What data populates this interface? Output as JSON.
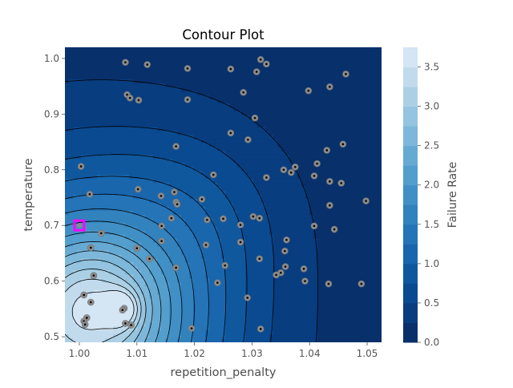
{
  "chart_data": {
    "type": "contour",
    "title": "Contour Plot",
    "xlabel": "repetition_penalty",
    "ylabel": "temperature",
    "xlim": [
      0.9975,
      1.0525
    ],
    "ylim": [
      0.49,
      1.02
    ],
    "x_ticks": [
      {
        "value": 1.0,
        "label": "1.00"
      },
      {
        "value": 1.01,
        "label": "1.01"
      },
      {
        "value": 1.02,
        "label": "1.02"
      },
      {
        "value": 1.03,
        "label": "1.03"
      },
      {
        "value": 1.04,
        "label": "1.04"
      },
      {
        "value": 1.05,
        "label": "1.05"
      }
    ],
    "y_ticks": [
      {
        "value": 0.5,
        "label": "0.5"
      },
      {
        "value": 0.6,
        "label": "0.6"
      },
      {
        "value": 0.7,
        "label": "0.7"
      },
      {
        "value": 0.8,
        "label": "0.8"
      },
      {
        "value": 0.9,
        "label": "0.9"
      },
      {
        "value": 1.0,
        "label": "1.0"
      }
    ],
    "colorbar": {
      "label": "Failure Rate",
      "range": [
        0.0,
        3.75
      ],
      "levels": [
        0,
        0.25,
        0.5,
        0.75,
        1.0,
        1.25,
        1.5,
        1.75,
        2.0,
        2.25,
        2.5,
        2.75,
        3.0,
        3.25,
        3.5,
        3.75
      ],
      "ticks": [
        {
          "value": 0.0,
          "label": "0.0"
        },
        {
          "value": 0.5,
          "label": "0.5"
        },
        {
          "value": 1.0,
          "label": "1.0"
        },
        {
          "value": 1.5,
          "label": "1.5"
        },
        {
          "value": 2.0,
          "label": "2.0"
        },
        {
          "value": 2.5,
          "label": "2.5"
        },
        {
          "value": 3.0,
          "label": "3.0"
        },
        {
          "value": 3.5,
          "label": "3.5"
        }
      ]
    },
    "colors": {
      "band_colors": [
        "#08306b",
        "#083d7f",
        "#0a4a90",
        "#10589e",
        "#1966ad",
        "#2474b7",
        "#3282be",
        "#4190c5",
        "#539ecd",
        "#66aad4",
        "#7db8da",
        "#94c4df",
        "#abd0e6",
        "#c1dbed",
        "#d4e5f4",
        "#e4eff9"
      ],
      "marker_face": "#8c8c8c",
      "marker_center": "#000000",
      "best_trial": "#ff00ff",
      "contour_line": "#000000"
    },
    "best_point": {
      "x": 1.0,
      "y": 0.7
    },
    "points": [
      {
        "x": 1.008,
        "y": 0.993
      },
      {
        "x": 1.0118,
        "y": 0.989
      },
      {
        "x": 1.0188,
        "y": 0.982
      },
      {
        "x": 1.0263,
        "y": 0.981
      },
      {
        "x": 1.0308,
        "y": 0.976
      },
      {
        "x": 1.0315,
        "y": 0.998
      },
      {
        "x": 1.0325,
        "y": 0.99
      },
      {
        "x": 1.0463,
        "y": 0.972
      },
      {
        "x": 1.0435,
        "y": 0.949
      },
      {
        "x": 1.0398,
        "y": 0.942
      },
      {
        "x": 1.0285,
        "y": 0.939
      },
      {
        "x": 1.0083,
        "y": 0.935
      },
      {
        "x": 1.0088,
        "y": 0.929
      },
      {
        "x": 1.0103,
        "y": 0.925
      },
      {
        "x": 1.0188,
        "y": 0.926
      },
      {
        "x": 1.0305,
        "y": 0.893
      },
      {
        "x": 1.0263,
        "y": 0.866
      },
      {
        "x": 1.0293,
        "y": 0.854
      },
      {
        "x": 1.0458,
        "y": 0.846
      },
      {
        "x": 1.0168,
        "y": 0.842
      },
      {
        "x": 1.043,
        "y": 0.835
      },
      {
        "x": 1.0413,
        "y": 0.811
      },
      {
        "x": 1.0375,
        "y": 0.805
      },
      {
        "x": 1.0355,
        "y": 0.8
      },
      {
        "x": 1.0368,
        "y": 0.795
      },
      {
        "x": 1.0408,
        "y": 0.789
      },
      {
        "x": 1.0325,
        "y": 0.786
      },
      {
        "x": 1.0435,
        "y": 0.779
      },
      {
        "x": 1.0455,
        "y": 0.776
      },
      {
        "x": 1.0003,
        "y": 0.806
      },
      {
        "x": 1.0233,
        "y": 0.791
      },
      {
        "x": 1.0102,
        "y": 0.765
      },
      {
        "x": 1.0018,
        "y": 0.756
      },
      {
        "x": 1.0142,
        "y": 0.753
      },
      {
        "x": 1.0165,
        "y": 0.76
      },
      {
        "x": 1.0213,
        "y": 0.747
      },
      {
        "x": 1.0168,
        "y": 0.742
      },
      {
        "x": 1.017,
        "y": 0.738
      },
      {
        "x": 1.0498,
        "y": 0.744
      },
      {
        "x": 1.0435,
        "y": 0.736
      },
      {
        "x": 1.016,
        "y": 0.713
      },
      {
        "x": 1.0222,
        "y": 0.71
      },
      {
        "x": 1.025,
        "y": 0.712
      },
      {
        "x": 1.0302,
        "y": 0.716
      },
      {
        "x": 1.0313,
        "y": 0.713
      },
      {
        "x": 1.028,
        "y": 0.701
      },
      {
        "x": 1.0143,
        "y": 0.699
      },
      {
        "x": 1.0408,
        "y": 0.699
      },
      {
        "x": 1.0443,
        "y": 0.693
      },
      {
        "x": 1.0038,
        "y": 0.686
      },
      {
        "x": 1.0143,
        "y": 0.672
      },
      {
        "x": 1.022,
        "y": 0.665
      },
      {
        "x": 1.028,
        "y": 0.67
      },
      {
        "x": 1.036,
        "y": 0.674
      },
      {
        "x": 1.002,
        "y": 0.66
      },
      {
        "x": 1.01,
        "y": 0.659
      },
      {
        "x": 1.0357,
        "y": 0.654
      },
      {
        "x": 1.0122,
        "y": 0.64
      },
      {
        "x": 1.0313,
        "y": 0.64
      },
      {
        "x": 1.0253,
        "y": 0.628
      },
      {
        "x": 1.0168,
        "y": 0.624
      },
      {
        "x": 1.0358,
        "y": 0.626
      },
      {
        "x": 1.039,
        "y": 0.622
      },
      {
        "x": 1.035,
        "y": 0.615
      },
      {
        "x": 1.0342,
        "y": 0.611
      },
      {
        "x": 1.0025,
        "y": 0.61
      },
      {
        "x": 1.0392,
        "y": 0.6
      },
      {
        "x": 1.0433,
        "y": 0.595
      },
      {
        "x": 1.049,
        "y": 0.595
      },
      {
        "x": 1.024,
        "y": 0.597
      },
      {
        "x": 1.0008,
        "y": 0.575
      },
      {
        "x": 1.002,
        "y": 0.562
      },
      {
        "x": 1.0292,
        "y": 0.57
      },
      {
        "x": 1.0078,
        "y": 0.551
      },
      {
        "x": 1.0075,
        "y": 0.548
      },
      {
        "x": 1.0013,
        "y": 0.534
      },
      {
        "x": 1.0008,
        "y": 0.528
      },
      {
        "x": 1.001,
        "y": 0.522
      },
      {
        "x": 1.008,
        "y": 0.524
      },
      {
        "x": 1.009,
        "y": 0.521
      },
      {
        "x": 1.0195,
        "y": 0.515
      },
      {
        "x": 1.0315,
        "y": 0.514
      }
    ]
  }
}
